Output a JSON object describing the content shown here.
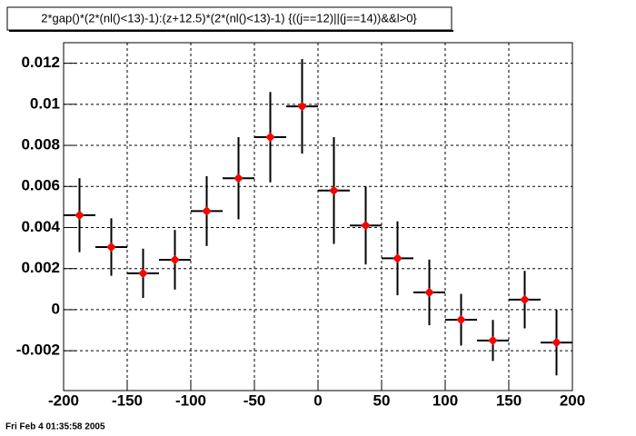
{
  "chart_data": {
    "type": "scatter",
    "title": "2*gap()*(2*(nl()<13)-1):(z+12.5)*(2*(nl()<13)-1) {((j==12)||(j==14))&&l>0}",
    "footer": "Fri Feb  4 01:35:58 2005",
    "x": [
      -187.5,
      -162.5,
      -137.5,
      -112.5,
      -87.5,
      -62.5,
      -37.5,
      -12.5,
      12.5,
      37.5,
      62.5,
      87.5,
      112.5,
      137.5,
      162.5,
      187.5
    ],
    "xerr": [
      12.5,
      12.5,
      12.5,
      12.5,
      12.5,
      12.5,
      12.5,
      12.5,
      12.5,
      12.5,
      12.5,
      12.5,
      12.5,
      12.5,
      12.5,
      12.5
    ],
    "values": [
      0.0046,
      0.00305,
      0.00177,
      0.00243,
      0.0048,
      0.0064,
      0.0084,
      0.0099,
      0.0058,
      0.0041,
      0.0025,
      0.00084,
      -0.00049,
      -0.0015,
      0.00049,
      -0.0016
    ],
    "errors": [
      0.0018,
      0.0014,
      0.0012,
      0.00145,
      0.0017,
      0.002,
      0.0022,
      0.0023,
      0.0026,
      0.0019,
      0.0018,
      0.0016,
      0.00126,
      0.001,
      0.0014,
      0.0016
    ],
    "color": "#ff0000",
    "xlim": [
      -200,
      200
    ],
    "xticks": [
      -200,
      -150,
      -100,
      -50,
      0,
      50,
      100,
      150,
      200
    ],
    "ylim": [
      -0.00394,
      0.013
    ],
    "yticks": [
      -0.002,
      0,
      0.002,
      0.004,
      0.006,
      0.008,
      0.01,
      0.012
    ],
    "grid": true
  }
}
